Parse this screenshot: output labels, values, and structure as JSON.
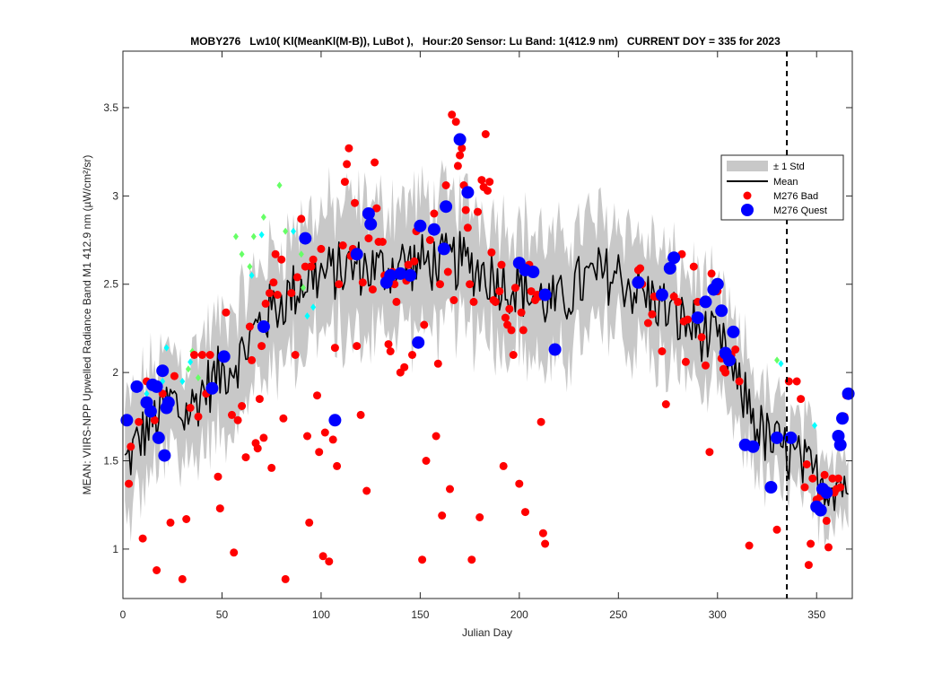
{
  "chart_data": {
    "type": "scatter",
    "title": "MOBY276   Lw10( Kl(MeanKl(M-B)), LuBot ),   Hour:20 Sensor: Lu Band: 1(412.9 nm)   CURRENT DOY = 335 for 2023",
    "xlabel": "Julian Day",
    "ylabel": "MEAN: VIIRS-NPP Upwelled Radiance Band M1 412.9 nm (µW/cm²/sr)",
    "xlim": [
      0,
      368
    ],
    "ylim": [
      0.72,
      3.82
    ],
    "xticks": [
      0,
      50,
      100,
      150,
      200,
      250,
      300,
      350
    ],
    "yticks": [
      1,
      1.5,
      2,
      2.5,
      3,
      3.5
    ],
    "xtick_labels": [
      "0",
      "50",
      "100",
      "150",
      "200",
      "250",
      "300",
      "350"
    ],
    "ytick_labels": [
      "1",
      "1.5",
      "2",
      "2.5",
      "3",
      "3.5"
    ],
    "current_doy": 335,
    "grid": false,
    "legend_position": "right",
    "legend": [
      "± 1 Std",
      "Mean",
      "M276 Bad",
      "M276 Quest"
    ],
    "colors": {
      "std_band": "#c8c8c8",
      "mean": "#000000",
      "bad": "#ff0000",
      "quest": "#0000ff",
      "extra_green": "#66ff66",
      "extra_cyan": "#00ffff"
    },
    "mean_keypoints": [
      [
        1,
        1.48
      ],
      [
        5,
        1.55
      ],
      [
        10,
        1.65
      ],
      [
        15,
        1.72
      ],
      [
        20,
        1.78
      ],
      [
        25,
        1.85
      ],
      [
        30,
        1.75
      ],
      [
        35,
        1.8
      ],
      [
        40,
        1.9
      ],
      [
        45,
        1.95
      ],
      [
        50,
        2.0
      ],
      [
        55,
        2.05
      ],
      [
        60,
        2.1
      ],
      [
        65,
        2.2
      ],
      [
        70,
        2.3
      ],
      [
        75,
        2.35
      ],
      [
        80,
        2.4
      ],
      [
        85,
        2.45
      ],
      [
        90,
        2.5
      ],
      [
        95,
        2.55
      ],
      [
        100,
        2.55
      ],
      [
        110,
        2.58
      ],
      [
        120,
        2.6
      ],
      [
        130,
        2.58
      ],
      [
        140,
        2.62
      ],
      [
        150,
        2.62
      ],
      [
        160,
        2.62
      ],
      [
        170,
        2.63
      ],
      [
        180,
        2.58
      ],
      [
        190,
        2.52
      ],
      [
        200,
        2.48
      ],
      [
        210,
        2.42
      ],
      [
        220,
        2.38
      ],
      [
        230,
        2.5
      ],
      [
        240,
        2.55
      ],
      [
        250,
        2.55
      ],
      [
        260,
        2.45
      ],
      [
        270,
        2.4
      ],
      [
        280,
        2.3
      ],
      [
        290,
        2.25
      ],
      [
        300,
        2.15
      ],
      [
        305,
        2.1
      ],
      [
        310,
        1.9
      ],
      [
        315,
        1.85
      ],
      [
        320,
        1.7
      ],
      [
        325,
        1.62
      ],
      [
        330,
        1.58
      ],
      [
        335,
        1.55
      ],
      [
        340,
        1.5
      ],
      [
        345,
        1.45
      ],
      [
        350,
        1.4
      ],
      [
        355,
        1.38
      ],
      [
        360,
        1.38
      ],
      [
        366,
        1.38
      ]
    ],
    "std_keypoints": [
      [
        1,
        0.3
      ],
      [
        50,
        0.3
      ],
      [
        100,
        0.35
      ],
      [
        150,
        0.35
      ],
      [
        200,
        0.35
      ],
      [
        250,
        0.32
      ],
      [
        300,
        0.28
      ],
      [
        340,
        0.22
      ],
      [
        366,
        0.18
      ]
    ],
    "bad_points": [
      [
        3,
        1.37
      ],
      [
        4,
        1.58
      ],
      [
        8,
        1.72
      ],
      [
        10,
        1.06
      ],
      [
        12,
        1.95
      ],
      [
        16,
        1.73
      ],
      [
        17,
        0.88
      ],
      [
        20,
        1.88
      ],
      [
        24,
        1.15
      ],
      [
        26,
        1.98
      ],
      [
        30,
        0.83
      ],
      [
        32,
        1.17
      ],
      [
        34,
        1.8
      ],
      [
        36,
        2.1
      ],
      [
        38,
        1.75
      ],
      [
        40,
        2.1
      ],
      [
        42,
        1.88
      ],
      [
        44,
        2.1
      ],
      [
        48,
        1.41
      ],
      [
        49,
        1.23
      ],
      [
        52,
        2.34
      ],
      [
        55,
        1.76
      ],
      [
        56,
        0.98
      ],
      [
        58,
        1.73
      ],
      [
        60,
        1.81
      ],
      [
        62,
        1.52
      ],
      [
        64,
        2.26
      ],
      [
        65,
        2.07
      ],
      [
        67,
        1.6
      ],
      [
        68,
        1.57
      ],
      [
        69,
        1.85
      ],
      [
        70,
        2.15
      ],
      [
        71,
        1.63
      ],
      [
        72,
        2.39
      ],
      [
        74,
        2.45
      ],
      [
        75,
        1.46
      ],
      [
        76,
        2.51
      ],
      [
        77,
        2.67
      ],
      [
        78,
        2.44
      ],
      [
        80,
        2.64
      ],
      [
        81,
        1.74
      ],
      [
        82,
        0.83
      ],
      [
        85,
        2.45
      ],
      [
        87,
        2.1
      ],
      [
        88,
        2.54
      ],
      [
        90,
        2.87
      ],
      [
        92,
        2.6
      ],
      [
        93,
        1.64
      ],
      [
        94,
        1.15
      ],
      [
        95,
        2.6
      ],
      [
        96,
        2.64
      ],
      [
        98,
        1.87
      ],
      [
        99,
        1.55
      ],
      [
        100,
        2.7
      ],
      [
        101,
        0.96
      ],
      [
        102,
        1.66
      ],
      [
        104,
        0.93
      ],
      [
        106,
        1.62
      ],
      [
        107,
        2.14
      ],
      [
        108,
        1.47
      ],
      [
        109,
        2.5
      ],
      [
        111,
        2.72
      ],
      [
        112,
        3.08
      ],
      [
        113,
        3.18
      ],
      [
        114,
        3.27
      ],
      [
        115,
        2.66
      ],
      [
        116,
        2.7
      ],
      [
        117,
        2.96
      ],
      [
        118,
        2.15
      ],
      [
        120,
        1.76
      ],
      [
        121,
        2.51
      ],
      [
        123,
        1.33
      ],
      [
        124,
        2.76
      ],
      [
        126,
        2.47
      ],
      [
        127,
        3.19
      ],
      [
        128,
        2.93
      ],
      [
        129,
        2.74
      ],
      [
        131,
        2.74
      ],
      [
        132,
        2.55
      ],
      [
        134,
        2.16
      ],
      [
        135,
        2.12
      ],
      [
        136,
        2.57
      ],
      [
        137,
        2.5
      ],
      [
        138,
        2.4
      ],
      [
        140,
        2.0
      ],
      [
        142,
        2.03
      ],
      [
        143,
        2.52
      ],
      [
        144,
        2.61
      ],
      [
        146,
        2.1
      ],
      [
        147,
        2.63
      ],
      [
        148,
        2.8
      ],
      [
        151,
        0.94
      ],
      [
        152,
        2.27
      ],
      [
        153,
        1.5
      ],
      [
        155,
        2.75
      ],
      [
        157,
        2.9
      ],
      [
        158,
        1.64
      ],
      [
        159,
        2.05
      ],
      [
        160,
        2.5
      ],
      [
        161,
        1.19
      ],
      [
        163,
        3.06
      ],
      [
        164,
        2.57
      ],
      [
        165,
        1.34
      ],
      [
        166,
        3.46
      ],
      [
        167,
        2.41
      ],
      [
        168,
        3.42
      ],
      [
        169,
        3.17
      ],
      [
        170,
        3.23
      ],
      [
        171,
        3.27
      ],
      [
        172,
        3.06
      ],
      [
        173,
        2.92
      ],
      [
        174,
        2.82
      ],
      [
        175,
        2.5
      ],
      [
        176,
        0.94
      ],
      [
        177,
        2.4
      ],
      [
        179,
        2.91
      ],
      [
        180,
        1.18
      ],
      [
        181,
        3.09
      ],
      [
        182,
        3.05
      ],
      [
        183,
        3.35
      ],
      [
        184,
        3.03
      ],
      [
        185,
        3.08
      ],
      [
        186,
        2.68
      ],
      [
        187,
        2.41
      ],
      [
        188,
        2.4
      ],
      [
        190,
        2.46
      ],
      [
        191,
        2.61
      ],
      [
        192,
        1.47
      ],
      [
        193,
        2.31
      ],
      [
        194,
        2.27
      ],
      [
        195,
        2.36
      ],
      [
        196,
        2.24
      ],
      [
        197,
        2.1
      ],
      [
        198,
        2.48
      ],
      [
        200,
        1.37
      ],
      [
        201,
        2.34
      ],
      [
        202,
        2.24
      ],
      [
        203,
        1.21
      ],
      [
        205,
        2.61
      ],
      [
        206,
        2.46
      ],
      [
        207,
        2.57
      ],
      [
        208,
        2.41
      ],
      [
        209,
        2.44
      ],
      [
        210,
        2.43
      ],
      [
        211,
        1.72
      ],
      [
        212,
        1.09
      ],
      [
        213,
        1.03
      ],
      [
        260,
        2.58
      ],
      [
        261,
        2.59
      ],
      [
        262,
        2.5
      ],
      [
        265,
        2.28
      ],
      [
        267,
        2.33
      ],
      [
        268,
        2.43
      ],
      [
        270,
        2.43
      ],
      [
        272,
        2.12
      ],
      [
        274,
        1.82
      ],
      [
        278,
        2.43
      ],
      [
        280,
        2.4
      ],
      [
        282,
        2.67
      ],
      [
        283,
        2.29
      ],
      [
        284,
        2.06
      ],
      [
        285,
        2.3
      ],
      [
        288,
        2.6
      ],
      [
        290,
        2.4
      ],
      [
        292,
        2.2
      ],
      [
        294,
        2.04
      ],
      [
        296,
        1.55
      ],
      [
        297,
        2.56
      ],
      [
        300,
        2.46
      ],
      [
        302,
        2.08
      ],
      [
        303,
        2.02
      ],
      [
        304,
        2.0
      ],
      [
        307,
        2.1
      ],
      [
        309,
        2.13
      ],
      [
        311,
        1.95
      ],
      [
        316,
        1.02
      ],
      [
        330,
        1.11
      ],
      [
        336,
        1.95
      ],
      [
        338,
        1.63
      ],
      [
        340,
        1.95
      ],
      [
        342,
        1.85
      ],
      [
        344,
        1.35
      ],
      [
        345,
        1.48
      ],
      [
        346,
        0.91
      ],
      [
        347,
        1.03
      ],
      [
        348,
        1.4
      ],
      [
        350,
        1.28
      ],
      [
        352,
        1.3
      ],
      [
        354,
        1.42
      ],
      [
        355,
        1.16
      ],
      [
        356,
        1.01
      ],
      [
        358,
        1.4
      ],
      [
        359,
        1.32
      ],
      [
        360,
        1.34
      ],
      [
        361,
        1.4
      ],
      [
        362,
        1.35
      ],
      [
        364,
        1.75
      ],
      [
        365,
        1.87
      ]
    ],
    "quest_points": [
      [
        2,
        1.73
      ],
      [
        7,
        1.92
      ],
      [
        12,
        1.83
      ],
      [
        14,
        1.78
      ],
      [
        15,
        1.93
      ],
      [
        17,
        1.92
      ],
      [
        18,
        1.63
      ],
      [
        20,
        2.01
      ],
      [
        21,
        1.53
      ],
      [
        22,
        1.8
      ],
      [
        23,
        1.83
      ],
      [
        45,
        1.91
      ],
      [
        51,
        2.09
      ],
      [
        71,
        2.26
      ],
      [
        92,
        2.76
      ],
      [
        107,
        1.73
      ],
      [
        118,
        2.67
      ],
      [
        124,
        2.9
      ],
      [
        125,
        2.84
      ],
      [
        133,
        2.51
      ],
      [
        135,
        2.55
      ],
      [
        140,
        2.56
      ],
      [
        145,
        2.55
      ],
      [
        149,
        2.17
      ],
      [
        150,
        2.83
      ],
      [
        157,
        2.81
      ],
      [
        162,
        2.7
      ],
      [
        163,
        2.94
      ],
      [
        170,
        3.32
      ],
      [
        174,
        3.02
      ],
      [
        200,
        2.62
      ],
      [
        203,
        2.58
      ],
      [
        207,
        2.57
      ],
      [
        213,
        2.44
      ],
      [
        218,
        2.13
      ],
      [
        260,
        2.51
      ],
      [
        272,
        2.44
      ],
      [
        276,
        2.59
      ],
      [
        278,
        2.65
      ],
      [
        290,
        2.31
      ],
      [
        294,
        2.4
      ],
      [
        298,
        2.47
      ],
      [
        300,
        2.5
      ],
      [
        302,
        2.35
      ],
      [
        304,
        2.11
      ],
      [
        306,
        2.07
      ],
      [
        308,
        2.23
      ],
      [
        314,
        1.59
      ],
      [
        318,
        1.58
      ],
      [
        327,
        1.35
      ],
      [
        330,
        1.63
      ],
      [
        337,
        1.63
      ],
      [
        350,
        1.24
      ],
      [
        352,
        1.22
      ],
      [
        353,
        1.34
      ],
      [
        355,
        1.32
      ],
      [
        361,
        1.64
      ],
      [
        362,
        1.59
      ],
      [
        363,
        1.74
      ],
      [
        366,
        1.88
      ]
    ],
    "green_points": [
      [
        33,
        2.02
      ],
      [
        35,
        2.12
      ],
      [
        38,
        1.97
      ],
      [
        57,
        2.77
      ],
      [
        60,
        2.67
      ],
      [
        64,
        2.6
      ],
      [
        66,
        2.77
      ],
      [
        71,
        2.88
      ],
      [
        79,
        3.06
      ],
      [
        82,
        2.8
      ],
      [
        90,
        2.67
      ],
      [
        91,
        2.48
      ],
      [
        330,
        2.07
      ]
    ],
    "cyan_points": [
      [
        12,
        1.88
      ],
      [
        20,
        1.95
      ],
      [
        22,
        2.14
      ],
      [
        30,
        1.95
      ],
      [
        34,
        2.06
      ],
      [
        65,
        2.55
      ],
      [
        70,
        2.78
      ],
      [
        86,
        2.8
      ],
      [
        93,
        2.32
      ],
      [
        96,
        2.37
      ],
      [
        332,
        2.05
      ],
      [
        349,
        1.7
      ]
    ]
  }
}
